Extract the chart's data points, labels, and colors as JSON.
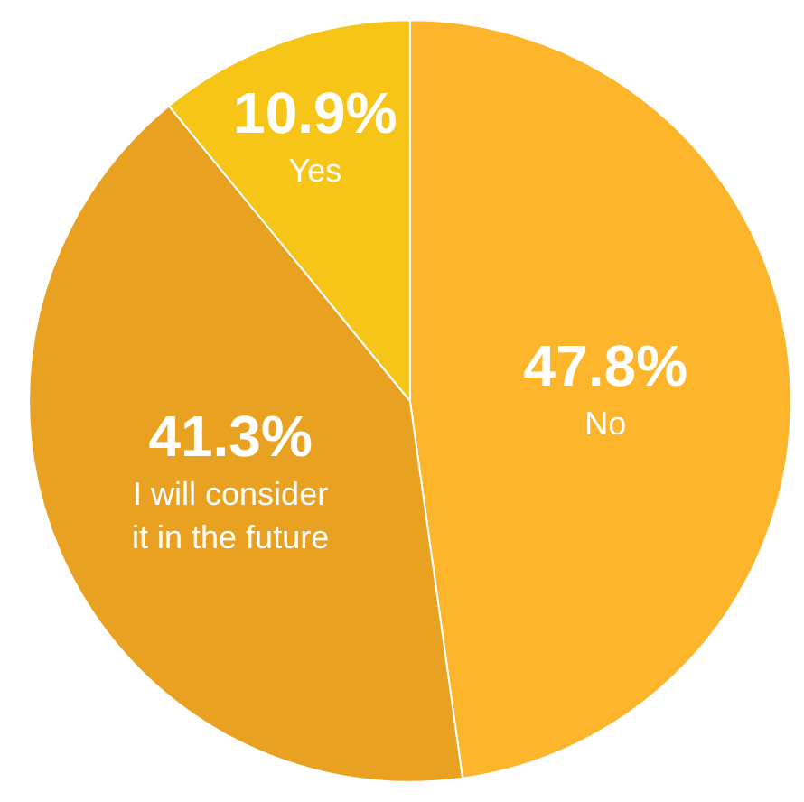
{
  "chart_data": {
    "type": "pie",
    "categories": [
      "No",
      "I will consider it in the future",
      "Yes"
    ],
    "values": [
      47.8,
      41.3,
      10.9
    ],
    "colors": [
      "#fdb52c",
      "#e9a121",
      "#f6c518"
    ],
    "value_labels": [
      "47.8%",
      "41.3%",
      "10.9%"
    ],
    "legend": false
  }
}
